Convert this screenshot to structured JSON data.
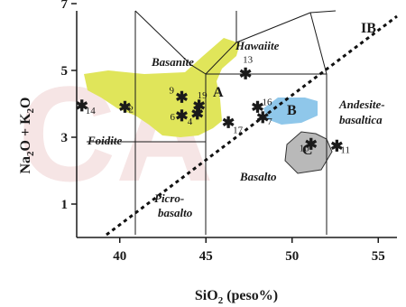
{
  "chart_data": {
    "type": "scatter",
    "title": "",
    "xlabel": "SiO2 (peso%)",
    "ylabel": "Na2O + K2O",
    "xlim": [
      37.5,
      56.5
    ],
    "ylim": [
      0,
      7
    ],
    "x_ticks": [
      40,
      45,
      50,
      55
    ],
    "y_ticks": [
      1,
      3,
      5,
      7
    ],
    "grid": false,
    "fields": [
      "Basanite",
      "Hawaiite",
      "Foidite",
      "Picro-basalto",
      "Basalto",
      "Andesite-basaltica"
    ],
    "field_boundary_line": "IB",
    "groups": [
      {
        "name": "A",
        "color": "#e0e55a"
      },
      {
        "name": "B",
        "color": "#8fc7ea"
      },
      {
        "name": "C",
        "color": "#b9b9b9"
      }
    ],
    "points": [
      {
        "label": "2",
        "x": 40.3,
        "y": 3.9
      },
      {
        "label": "4",
        "x": 44.5,
        "y": 3.7
      },
      {
        "label": "6",
        "x": 43.6,
        "y": 3.65
      },
      {
        "label": "7",
        "x": 48.3,
        "y": 3.6
      },
      {
        "label": "9",
        "x": 43.6,
        "y": 4.2
      },
      {
        "label": "10",
        "x": 51.1,
        "y": 2.8
      },
      {
        "label": "11",
        "x": 52.6,
        "y": 2.75
      },
      {
        "label": "13",
        "x": 47.3,
        "y": 4.9
      },
      {
        "label": "14",
        "x": 37.8,
        "y": 3.95
      },
      {
        "label": "16",
        "x": 48.0,
        "y": 3.9
      },
      {
        "label": "17",
        "x": 46.3,
        "y": 3.45
      },
      {
        "label": "19",
        "x": 44.6,
        "y": 3.95
      }
    ]
  },
  "watermark_text": "CA"
}
